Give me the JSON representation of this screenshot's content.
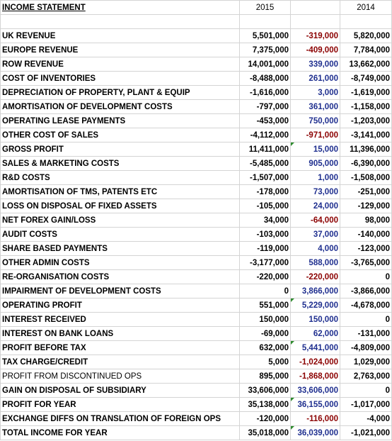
{
  "header": {
    "title": "INCOME STATEMENT",
    "col_2015": "2015",
    "col_variance": "",
    "col_2014": "2014"
  },
  "rows": [
    {
      "label": "UK REVENUE",
      "y2015": "5,501,000",
      "var": "-319,000",
      "var_sign": "neg",
      "y2014": "5,820,000"
    },
    {
      "label": "EUROPE REVENUE",
      "y2015": "7,375,000",
      "var": "-409,000",
      "var_sign": "neg",
      "y2014": "7,784,000"
    },
    {
      "label": "ROW REVENUE",
      "y2015": "14,001,000",
      "var": "339,000",
      "var_sign": "pos",
      "y2014": "13,662,000"
    },
    {
      "label": "COST OF INVENTORIES",
      "y2015": "-8,488,000",
      "var": "261,000",
      "var_sign": "pos",
      "y2014": "-8,749,000"
    },
    {
      "label": "DEPRECIATION OF PROPERTY, PLANT & EQUIP",
      "y2015": "-1,616,000",
      "var": "3,000",
      "var_sign": "pos",
      "y2014": "-1,619,000"
    },
    {
      "label": "AMORTISATION OF DEVELOPMENT COSTS",
      "y2015": "-797,000",
      "var": "361,000",
      "var_sign": "pos",
      "y2014": "-1,158,000"
    },
    {
      "label": "OPERATING LEASE PAYMENTS",
      "y2015": "-453,000",
      "var": "750,000",
      "var_sign": "pos",
      "y2014": "-1,203,000"
    },
    {
      "label": "OTHER COST OF SALES",
      "y2015": "-4,112,000",
      "var": "-971,000",
      "var_sign": "neg",
      "y2014": "-3,141,000"
    },
    {
      "label": "GROSS PROFIT",
      "y2015": "11,411,000",
      "var": "15,000",
      "var_sign": "pos",
      "y2014": "11,396,000",
      "total": true,
      "flag": true
    },
    {
      "label": "SALES & MARKETING COSTS",
      "y2015": "-5,485,000",
      "var": "905,000",
      "var_sign": "pos",
      "y2014": "-6,390,000"
    },
    {
      "label": "R&D COSTS",
      "y2015": "-1,507,000",
      "var": "1,000",
      "var_sign": "pos",
      "y2014": "-1,508,000"
    },
    {
      "label": "AMORTISATION OF TMS, PATENTS ETC",
      "y2015": "-178,000",
      "var": "73,000",
      "var_sign": "pos",
      "y2014": "-251,000"
    },
    {
      "label": "LOSS ON DISPOSAL OF FIXED ASSETS",
      "y2015": "-105,000",
      "var": "24,000",
      "var_sign": "pos",
      "y2014": "-129,000"
    },
    {
      "label": "NET FOREX GAIN/LOSS",
      "y2015": "34,000",
      "var": "-64,000",
      "var_sign": "neg",
      "y2014": "98,000"
    },
    {
      "label": "AUDIT COSTS",
      "y2015": "-103,000",
      "var": "37,000",
      "var_sign": "pos",
      "y2014": "-140,000"
    },
    {
      "label": "SHARE BASED PAYMENTS",
      "y2015": "-119,000",
      "var": "4,000",
      "var_sign": "pos",
      "y2014": "-123,000"
    },
    {
      "label": "OTHER ADMIN COSTS",
      "y2015": "-3,177,000",
      "var": "588,000",
      "var_sign": "pos",
      "y2014": "-3,765,000"
    },
    {
      "label": "RE-ORGANISATION COSTS",
      "y2015": "-220,000",
      "var": "-220,000",
      "var_sign": "neg",
      "y2014": "0"
    },
    {
      "label": "IMPAIRMENT OF DEVELOPMENT COSTS",
      "y2015": "0",
      "var": "3,866,000",
      "var_sign": "pos",
      "y2014": "-3,866,000"
    },
    {
      "label": "OPERATING PROFIT",
      "y2015": "551,000",
      "var": "5,229,000",
      "var_sign": "pos",
      "y2014": "-4,678,000",
      "total": true,
      "flag": true
    },
    {
      "label": "INTEREST RECEIVED",
      "y2015": "150,000",
      "var": "150,000",
      "var_sign": "pos",
      "y2014": "0"
    },
    {
      "label": "INTEREST ON BANK LOANS",
      "y2015": "-69,000",
      "var": "62,000",
      "var_sign": "pos",
      "y2014": "-131,000"
    },
    {
      "label": "PROFIT BEFORE TAX",
      "y2015": "632,000",
      "var": "5,441,000",
      "var_sign": "pos",
      "y2014": "-4,809,000",
      "total": true,
      "flag": true
    },
    {
      "label": "TAX CHARGE/CREDIT",
      "y2015": "5,000",
      "var": "-1,024,000",
      "var_sign": "neg",
      "y2014": "1,029,000"
    },
    {
      "label": "PROFIT FROM DISCONTINUED OPS",
      "y2015": "895,000",
      "var": "-1,868,000",
      "var_sign": "neg",
      "y2014": "2,763,000",
      "plain": true
    },
    {
      "label": "GAIN ON DISPOSAL OF SUBSIDIARY",
      "y2015": "33,606,000",
      "var": "33,606,000",
      "var_sign": "pos",
      "y2014": "0"
    },
    {
      "label": "PROFIT FOR YEAR",
      "y2015": "35,138,000",
      "var": "36,155,000",
      "var_sign": "pos",
      "y2014": "-1,017,000",
      "total": true,
      "flag": true
    },
    {
      "label": "EXCHANGE DIFFS ON TRANSLATION OF FOREIGN OPS",
      "y2015": "-120,000",
      "var": "-116,000",
      "var_sign": "neg",
      "y2014": "-4,000"
    },
    {
      "label": "TOTAL INCOME FOR YEAR",
      "y2015": "35,018,000",
      "var": "36,039,000",
      "var_sign": "pos",
      "y2014": "-1,021,000",
      "total": true,
      "flag": true
    }
  ],
  "colors": {
    "negative_variance": "#8b0000",
    "positive_variance": "#1f2f8f",
    "grid": "#d4d4d4",
    "formula_flag": "#2e8b2e"
  }
}
